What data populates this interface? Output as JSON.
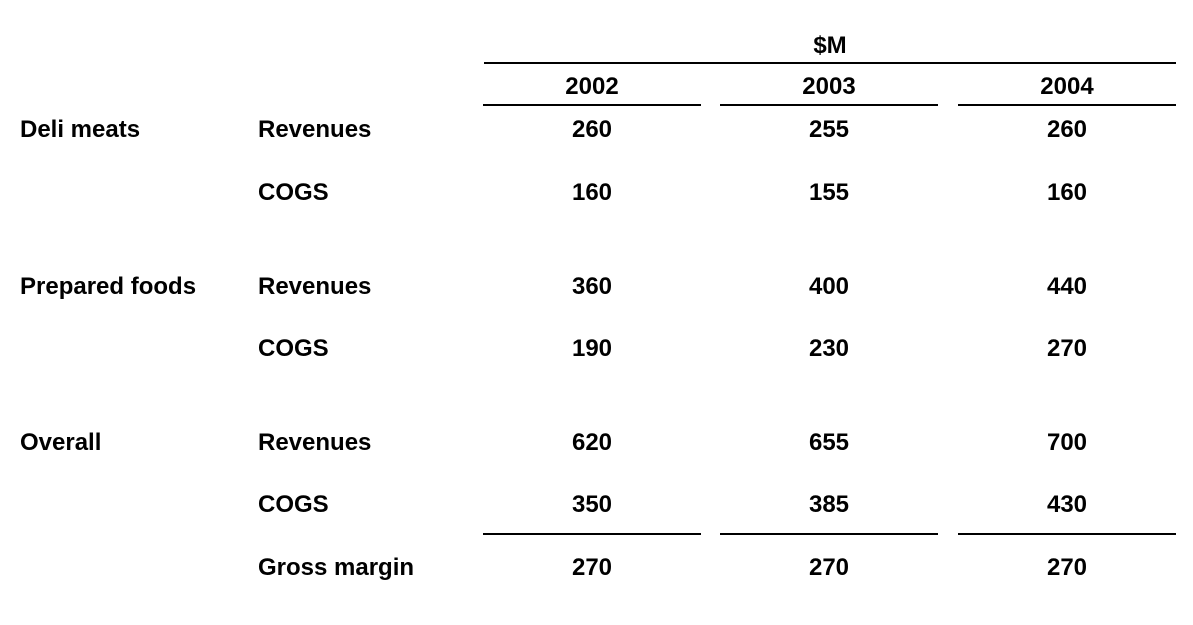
{
  "chart_data": {
    "type": "table",
    "unit": "$M",
    "columns": [
      "2002",
      "2003",
      "2004"
    ],
    "groups": [
      {
        "name": "Deli meats",
        "rows": [
          {
            "label": "Revenues",
            "values": [
              "260",
              "255",
              "260"
            ]
          },
          {
            "label": "COGS",
            "values": [
              "160",
              "155",
              "160"
            ]
          }
        ]
      },
      {
        "name": "Prepared foods",
        "rows": [
          {
            "label": "Revenues",
            "values": [
              "360",
              "400",
              "440"
            ]
          },
          {
            "label": "COGS",
            "values": [
              "190",
              "230",
              "270"
            ]
          }
        ]
      },
      {
        "name": "Overall",
        "rows": [
          {
            "label": "Revenues",
            "values": [
              "620",
              "655",
              "700"
            ]
          },
          {
            "label": "COGS",
            "values": [
              "350",
              "385",
              "430"
            ]
          },
          {
            "label": "Gross margin",
            "values": [
              "270",
              "270",
              "270"
            ]
          }
        ]
      }
    ]
  }
}
